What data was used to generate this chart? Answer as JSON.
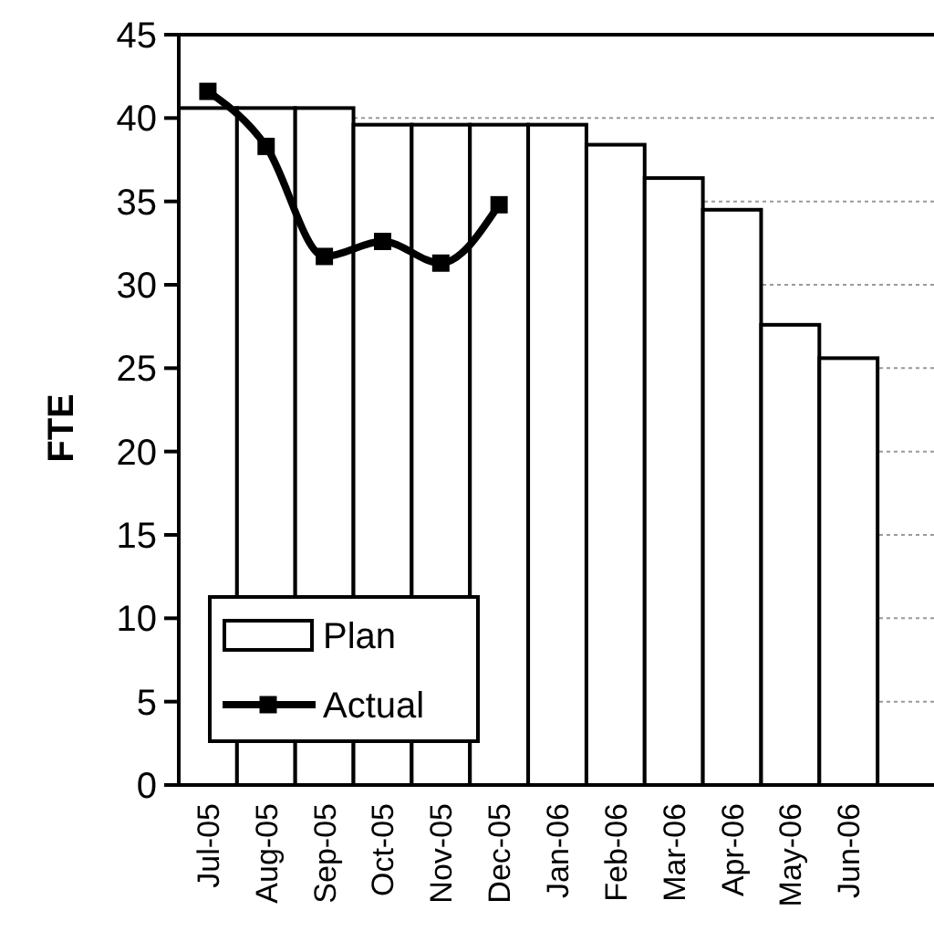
{
  "chart_data": {
    "type": "bar",
    "ylabel": "FTE",
    "categories": [
      "Jul-05",
      "Aug-05",
      "Sep-05",
      "Oct-05",
      "Nov-05",
      "Dec-05",
      "Jan-06",
      "Feb-06",
      "Mar-06",
      "Apr-06",
      "May-06",
      "Jun-06",
      null
    ],
    "series": [
      {
        "name": "Plan",
        "color": "#ffffff",
        "values": [
          40.6,
          40.6,
          40.6,
          39.6,
          39.6,
          39.6,
          39.6,
          38.4,
          36.4,
          34.5,
          27.6,
          25.6,
          null
        ]
      },
      {
        "name": "Actual",
        "type": "line",
        "color": "#000000",
        "marker": "square",
        "values": [
          41.6,
          38.3,
          31.7,
          32.6,
          31.3,
          34.8,
          null,
          null,
          null,
          null,
          null,
          null,
          null
        ]
      }
    ],
    "ylim": [
      0,
      45
    ],
    "yticks": [
      0,
      5,
      10,
      15,
      20,
      25,
      30,
      35,
      40,
      45
    ],
    "grid": "y",
    "legend": "bottom left"
  }
}
